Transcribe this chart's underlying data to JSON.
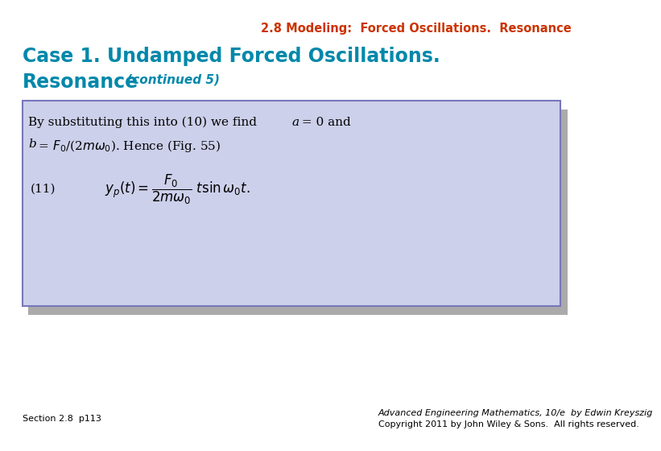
{
  "header_text": "2.8 Modeling:  Forced Oscillations.  Resonance",
  "header_color": "#CC3300",
  "header_fontsize": 10.5,
  "title_line1": "Case 1. Undamped Forced Oscillations.",
  "title_line2": "Resonance",
  "title_continued": " (continued 5)",
  "title_color": "#0088AA",
  "title_fontsize": 17,
  "continued_fontsize": 11,
  "box_bg_color": "#CDD0EA",
  "box_edge_color": "#7777BB",
  "box_shadow_color": "#AAAAAA",
  "body_fontsize": 11,
  "eq_fontsize": 12,
  "eq_label": "(11)",
  "footer_left": "Section 2.8  p113",
  "footer_right_line1": "Advanced Engineering Mathematics, 10/e  by Edwin Kreyszig",
  "footer_right_line2": "Copyright 2011 by John Wiley & Sons.  All rights reserved.",
  "footer_fontsize": 8,
  "bg_color": "#FFFFFF"
}
